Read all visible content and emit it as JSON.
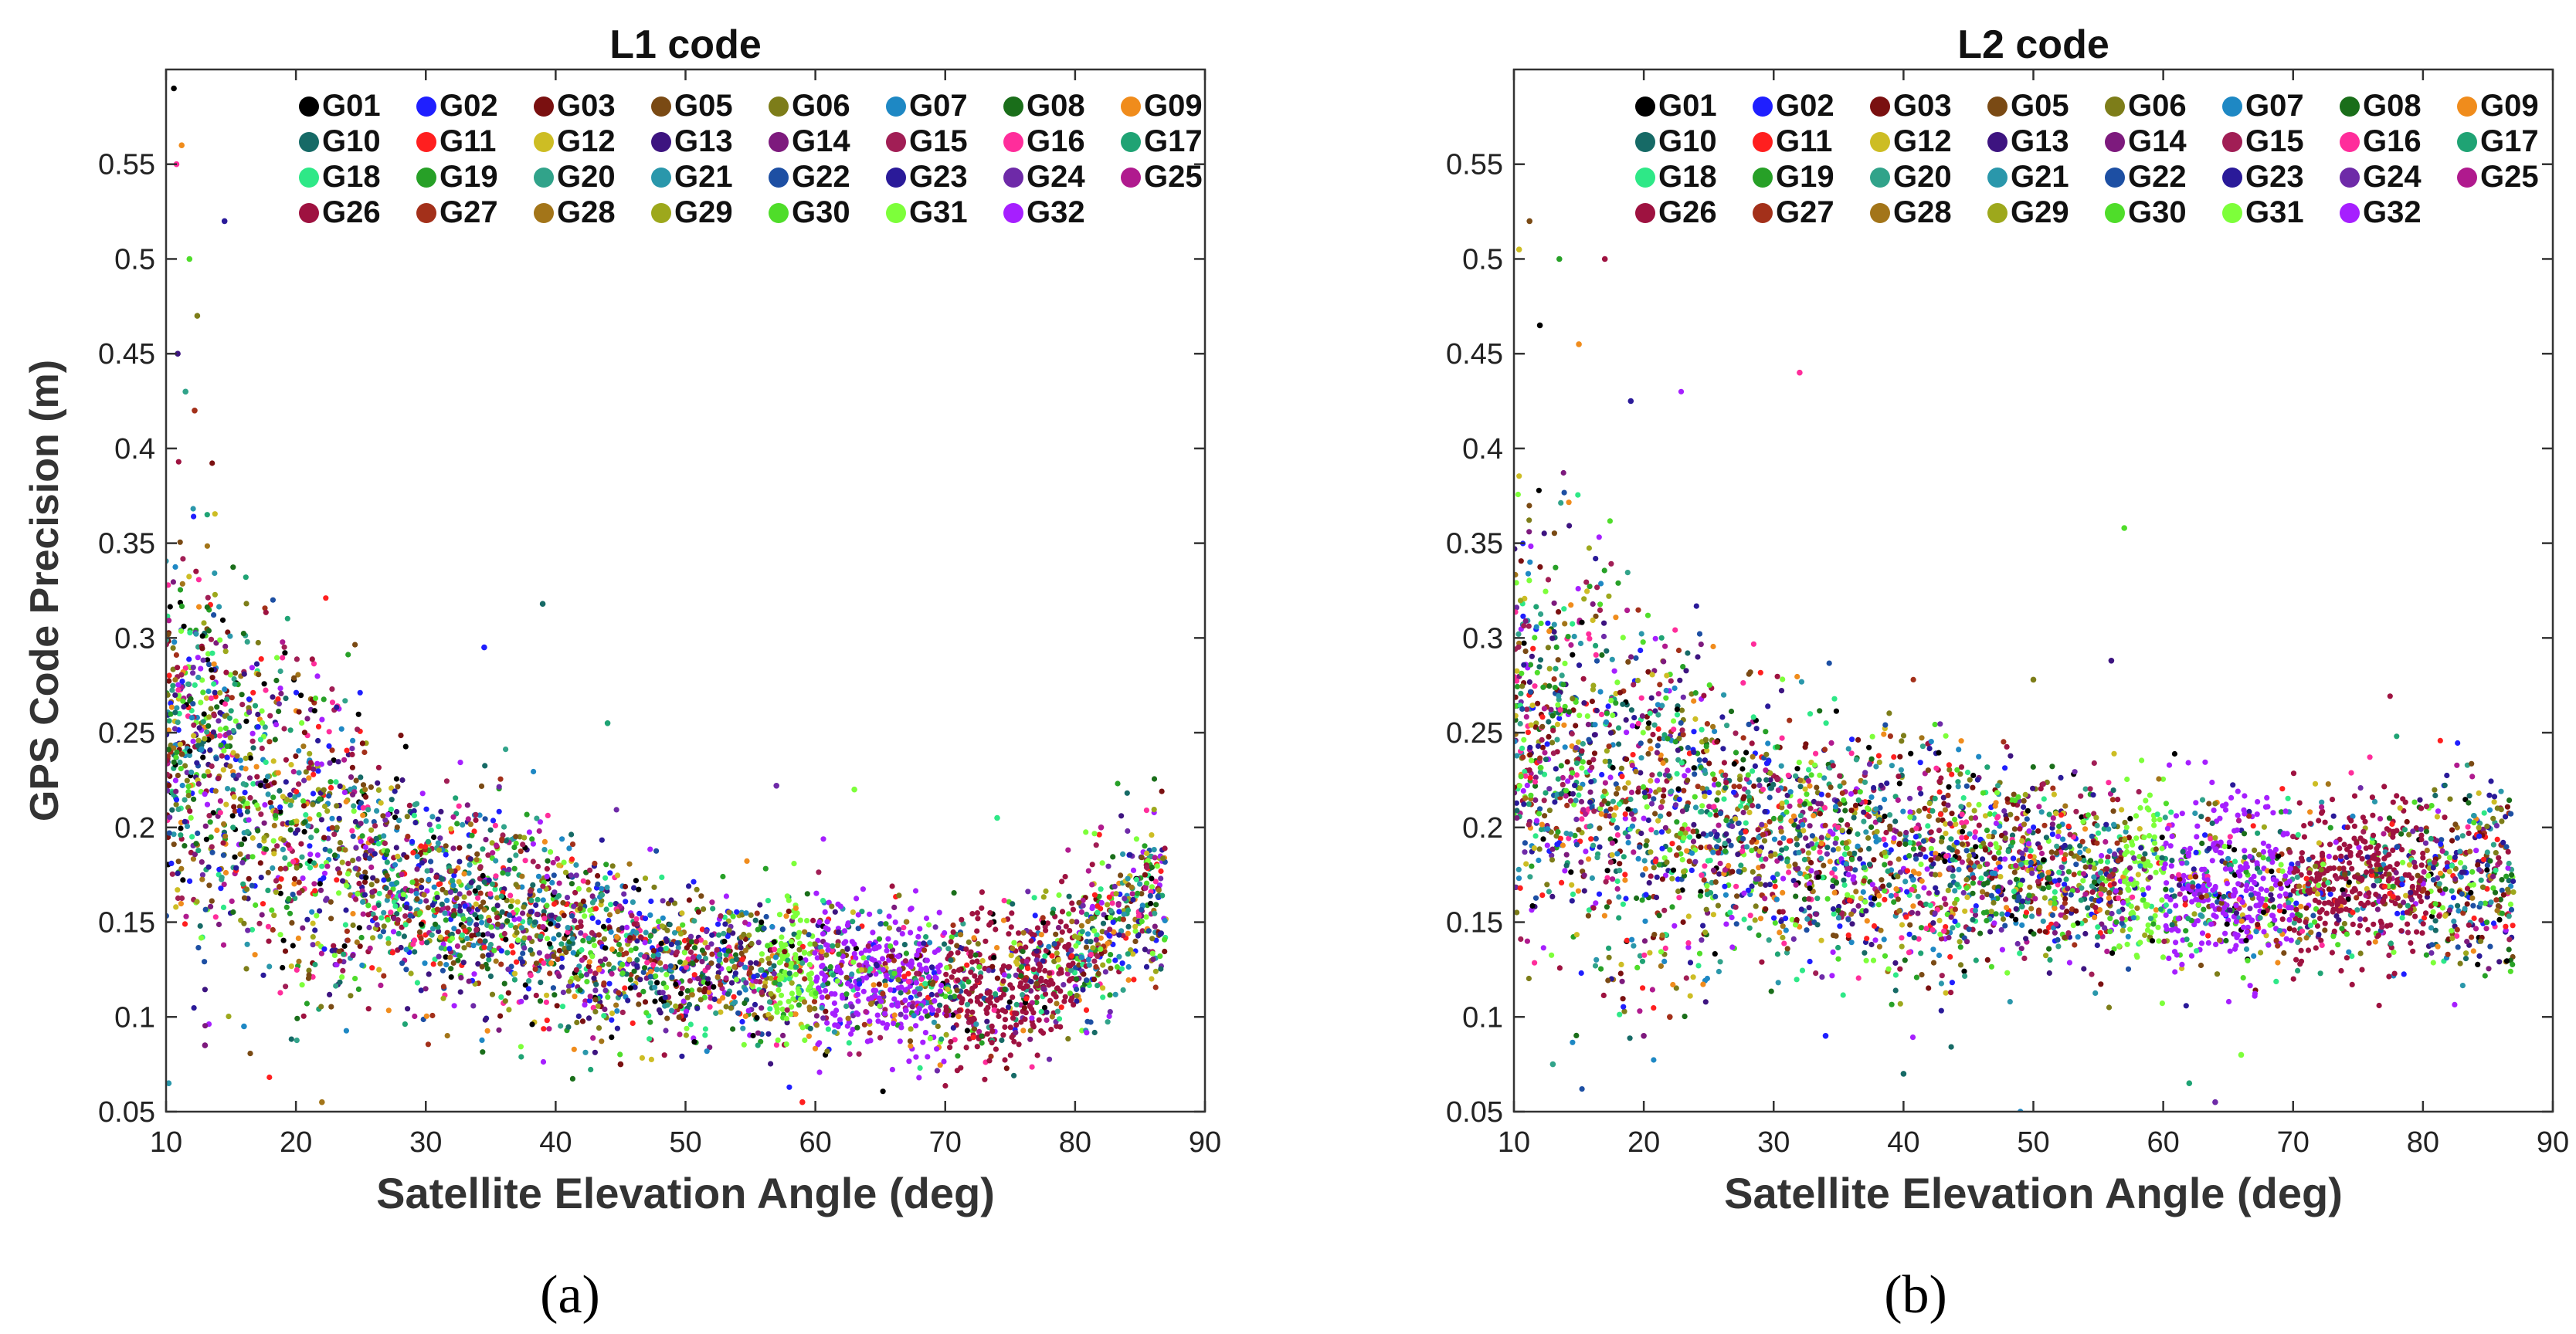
{
  "figure": {
    "panels": [
      "(a)",
      "(b)"
    ]
  },
  "chart_data": [
    {
      "type": "scatter",
      "title": "L1 code",
      "xlabel": "Satellite Elevation Angle (deg)",
      "ylabel": "GPS Code Precision (m)",
      "xlim": [
        10,
        90
      ],
      "ylim": [
        0.05,
        0.6
      ],
      "xticks": [
        10,
        20,
        30,
        40,
        50,
        60,
        70,
        80,
        90
      ],
      "yticks": [
        0.05,
        0.1,
        0.15,
        0.2,
        0.25,
        0.3,
        0.35,
        0.4,
        0.45,
        0.5,
        0.55
      ],
      "grid": false,
      "legend_position": "top",
      "trend": {
        "x": [
          10,
          15,
          20,
          25,
          30,
          35,
          40,
          45,
          50,
          55,
          60,
          65,
          70,
          75,
          80,
          85
        ],
        "y": [
          0.25,
          0.225,
          0.2,
          0.18,
          0.165,
          0.155,
          0.145,
          0.135,
          0.125,
          0.125,
          0.125,
          0.12,
          0.115,
          0.115,
          0.13,
          0.165
        ]
      },
      "outliers": [
        [
          10.6,
          0.59
        ],
        [
          11.2,
          0.56
        ],
        [
          10.8,
          0.55
        ],
        [
          14.5,
          0.52
        ],
        [
          11.8,
          0.5
        ],
        [
          12.4,
          0.47
        ],
        [
          10.9,
          0.45
        ],
        [
          11.5,
          0.43
        ],
        [
          12.2,
          0.42
        ],
        [
          34.5,
          0.295
        ],
        [
          39,
          0.318
        ],
        [
          44,
          0.255
        ],
        [
          57,
          0.222
        ],
        [
          63,
          0.22
        ],
        [
          16,
          0.095
        ],
        [
          13,
          0.085
        ],
        [
          10.2,
          0.065
        ],
        [
          22,
          0.055
        ],
        [
          45,
          0.075
        ],
        [
          59,
          0.055
        ],
        [
          74,
          0.205
        ],
        [
          82,
          0.2
        ]
      ]
    },
    {
      "type": "scatter",
      "title": "L2 code",
      "xlabel": "Satellite Elevation Angle (deg)",
      "ylabel": "",
      "xlim": [
        10,
        90
      ],
      "ylim": [
        0.05,
        0.6
      ],
      "xticks": [
        10,
        20,
        30,
        40,
        50,
        60,
        70,
        80,
        90
      ],
      "yticks": [
        0.05,
        0.1,
        0.15,
        0.2,
        0.25,
        0.3,
        0.35,
        0.4,
        0.45,
        0.5,
        0.55
      ],
      "grid": false,
      "legend_position": "top",
      "trend": {
        "x": [
          10,
          15,
          20,
          25,
          30,
          35,
          40,
          45,
          50,
          55,
          60,
          65,
          70,
          75,
          80,
          85
        ],
        "y": [
          0.25,
          0.23,
          0.215,
          0.205,
          0.195,
          0.188,
          0.183,
          0.18,
          0.178,
          0.176,
          0.17,
          0.168,
          0.168,
          0.17,
          0.173,
          0.175
        ]
      },
      "outliers": [
        [
          11.2,
          0.52
        ],
        [
          10.4,
          0.505
        ],
        [
          13.5,
          0.5
        ],
        [
          17,
          0.5
        ],
        [
          12,
          0.465
        ],
        [
          15,
          0.455
        ],
        [
          32,
          0.44
        ],
        [
          19,
          0.425
        ],
        [
          57,
          0.358
        ],
        [
          50,
          0.278
        ],
        [
          56,
          0.288
        ],
        [
          13,
          0.075
        ],
        [
          22,
          0.1
        ],
        [
          34,
          0.09
        ],
        [
          40,
          0.07
        ],
        [
          62,
          0.065
        ],
        [
          64,
          0.055
        ],
        [
          66,
          0.08
        ],
        [
          49,
          0.05
        ],
        [
          20,
          0.09
        ]
      ]
    }
  ],
  "legend": {
    "satellites": [
      {
        "label": "G01",
        "color": "#000000"
      },
      {
        "label": "G02",
        "color": "#1f1fff"
      },
      {
        "label": "G03",
        "color": "#7a1010"
      },
      {
        "label": "G05",
        "color": "#7a4a14"
      },
      {
        "label": "G06",
        "color": "#7d7d19"
      },
      {
        "label": "G07",
        "color": "#1e88c4"
      },
      {
        "label": "G08",
        "color": "#1a6e1a"
      },
      {
        "label": "G09",
        "color": "#f08c1c"
      },
      {
        "label": "G10",
        "color": "#166a66"
      },
      {
        "label": "G11",
        "color": "#ff1f1f"
      },
      {
        "label": "G12",
        "color": "#cdbd24"
      },
      {
        "label": "G13",
        "color": "#3d1480"
      },
      {
        "label": "G14",
        "color": "#7d1a7d"
      },
      {
        "label": "G15",
        "color": "#a11e55"
      },
      {
        "label": "G16",
        "color": "#ff2d9b"
      },
      {
        "label": "G17",
        "color": "#1fa374"
      },
      {
        "label": "G18",
        "color": "#2ee887"
      },
      {
        "label": "G19",
        "color": "#27a027"
      },
      {
        "label": "G20",
        "color": "#31a38a"
      },
      {
        "label": "G21",
        "color": "#2a97ab"
      },
      {
        "label": "G22",
        "color": "#1d4fa3"
      },
      {
        "label": "G23",
        "color": "#2a1a99"
      },
      {
        "label": "G24",
        "color": "#6e2aa8"
      },
      {
        "label": "G25",
        "color": "#b01a8e"
      },
      {
        "label": "G26",
        "color": "#9e1240"
      },
      {
        "label": "G27",
        "color": "#a3301a"
      },
      {
        "label": "G28",
        "color": "#a37519"
      },
      {
        "label": "G29",
        "color": "#9da81c"
      },
      {
        "label": "G30",
        "color": "#4fdd2a"
      },
      {
        "label": "G31",
        "color": "#7dff3a"
      },
      {
        "label": "G32",
        "color": "#a61fff"
      }
    ]
  }
}
